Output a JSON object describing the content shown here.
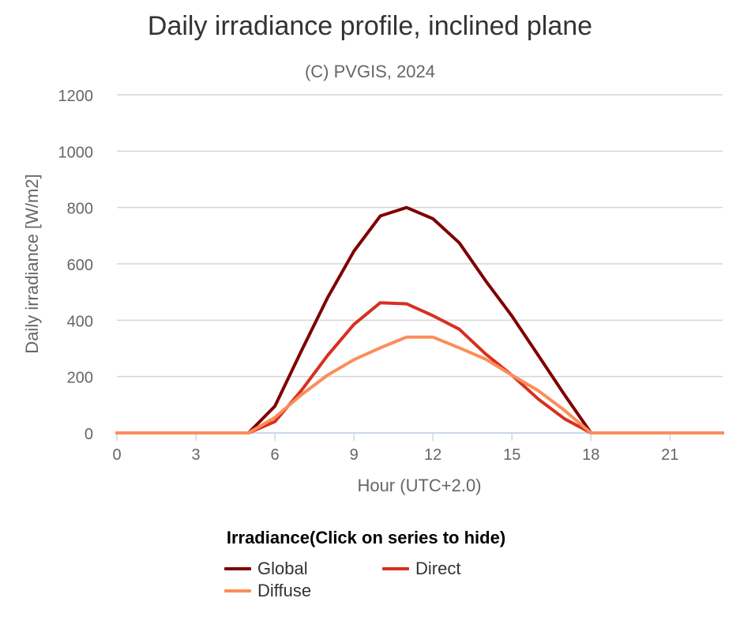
{
  "chart_data": {
    "type": "line",
    "title": "Daily irradiance profile, inclined plane",
    "subtitle": "(C) PVGIS, 2024",
    "xlabel": "Hour (UTC+2.0)",
    "ylabel": "Daily irradiance [W/m2]",
    "xlim": [
      0,
      23
    ],
    "ylim": [
      0,
      1200
    ],
    "x_ticks": [
      0,
      3,
      6,
      9,
      12,
      15,
      18,
      21
    ],
    "y_ticks": [
      0,
      200,
      400,
      600,
      800,
      1000,
      1200
    ],
    "grid": "horizontal",
    "legend_title": "Irradiance(Click on series to hide)",
    "legend_position": "bottom",
    "x": [
      0,
      1,
      2,
      3,
      4,
      5,
      6,
      7,
      8,
      9,
      10,
      11,
      12,
      13,
      14,
      15,
      16,
      17,
      18,
      19,
      20,
      21,
      22,
      23
    ],
    "series": [
      {
        "name": "Global",
        "color": "#7f0000",
        "values": [
          0,
          0,
          0,
          0,
          0,
          0,
          95,
          290,
          480,
          645,
          770,
          800,
          760,
          675,
          540,
          415,
          275,
          135,
          0,
          0,
          0,
          0,
          0,
          0
        ]
      },
      {
        "name": "Direct",
        "color": "#d7301f",
        "values": [
          0,
          0,
          0,
          0,
          0,
          0,
          40,
          150,
          275,
          385,
          462,
          458,
          416,
          368,
          280,
          205,
          120,
          50,
          0,
          0,
          0,
          0,
          0,
          0
        ]
      },
      {
        "name": "Diffuse",
        "color": "#fc8d59",
        "values": [
          0,
          0,
          0,
          0,
          0,
          0,
          55,
          135,
          205,
          260,
          302,
          340,
          340,
          302,
          262,
          205,
          150,
          80,
          0,
          0,
          0,
          0,
          0,
          0
        ]
      }
    ]
  }
}
